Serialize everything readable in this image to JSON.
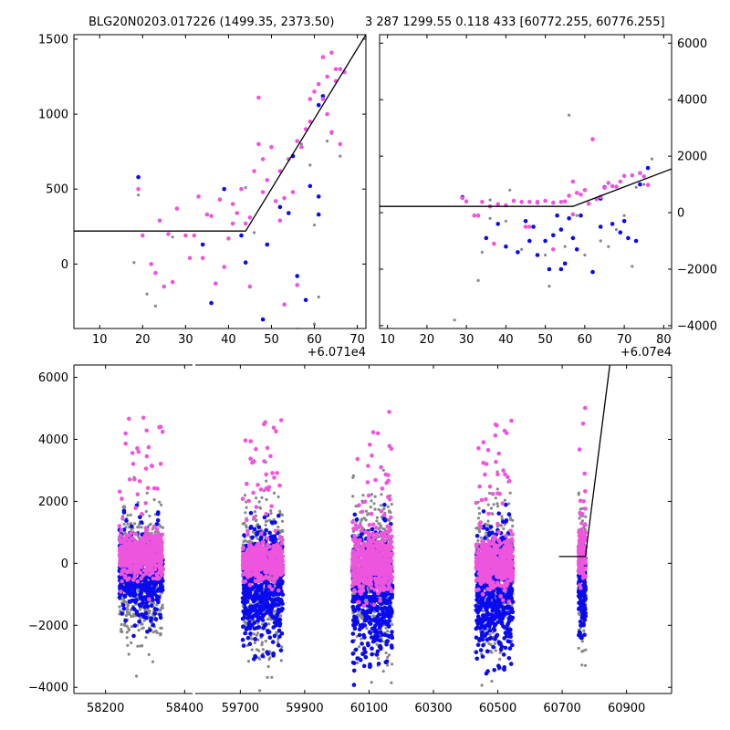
{
  "titles": {
    "left": "BLG20N0203.017226 (1499.35, 2373.50)",
    "right": "3 287 1299.55 0.118 433 [60772.255, 60776.255]"
  },
  "colors": {
    "pink": "#ee55dd",
    "blue": "#0a0aee",
    "gray": "#888888",
    "line": "#000000"
  },
  "chart_data": [
    {
      "type": "scatter",
      "id": "top-left",
      "xlim": [
        4,
        72
      ],
      "ylim": [
        -430,
        1530
      ],
      "xticks": [
        10,
        20,
        30,
        40,
        50,
        60,
        70
      ],
      "yticks": [
        0,
        500,
        1000,
        1500
      ],
      "offset_label": "+6.071e4",
      "model": {
        "x": [
          4,
          44,
          72
        ],
        "y": [
          220,
          220,
          1530
        ]
      },
      "points": {
        "pink": [
          [
            19,
            500
          ],
          [
            20,
            190
          ],
          [
            22,
            0
          ],
          [
            23,
            -60
          ],
          [
            24,
            290
          ],
          [
            25,
            -150
          ],
          [
            26,
            200
          ],
          [
            27,
            -120
          ],
          [
            28,
            370
          ],
          [
            30,
            190
          ],
          [
            31,
            40
          ],
          [
            32,
            190
          ],
          [
            33,
            450
          ],
          [
            34,
            40
          ],
          [
            35,
            330
          ],
          [
            36,
            320
          ],
          [
            37,
            -130
          ],
          [
            38,
            430
          ],
          [
            39,
            -20
          ],
          [
            40,
            170
          ],
          [
            41,
            400
          ],
          [
            42,
            340
          ],
          [
            43,
            500
          ],
          [
            44,
            270
          ],
          [
            45,
            310
          ],
          [
            46,
            620
          ],
          [
            47,
            1110
          ],
          [
            47,
            800
          ],
          [
            48,
            700
          ],
          [
            48,
            480
          ],
          [
            49,
            560
          ],
          [
            50,
            780
          ],
          [
            51,
            420
          ],
          [
            52,
            620
          ],
          [
            53,
            440
          ],
          [
            54,
            700
          ],
          [
            55,
            480
          ],
          [
            56,
            820
          ],
          [
            57,
            780
          ],
          [
            58,
            900
          ],
          [
            59,
            1100
          ],
          [
            59,
            950
          ],
          [
            60,
            1150
          ],
          [
            61,
            1200
          ],
          [
            62,
            1380
          ],
          [
            62,
            1100
          ],
          [
            63,
            1250
          ],
          [
            63,
            1000
          ],
          [
            64,
            1410
          ],
          [
            64,
            880
          ],
          [
            65,
            1300
          ],
          [
            65,
            1220
          ],
          [
            66,
            1300
          ],
          [
            66,
            800
          ],
          [
            67,
            1280
          ],
          [
            56,
            -140
          ],
          [
            45,
            -150
          ],
          [
            41,
            270
          ],
          [
            53,
            -270
          ],
          [
            52,
            290
          ]
        ],
        "blue": [
          [
            19,
            580
          ],
          [
            34,
            130
          ],
          [
            36,
            -260
          ],
          [
            39,
            500
          ],
          [
            43,
            190
          ],
          [
            44,
            10
          ],
          [
            48,
            -370
          ],
          [
            49,
            130
          ],
          [
            52,
            380
          ],
          [
            55,
            720
          ],
          [
            56,
            -80
          ],
          [
            58,
            -240
          ],
          [
            59,
            520
          ],
          [
            61,
            1060
          ],
          [
            61,
            450
          ],
          [
            61,
            330
          ],
          [
            62,
            1120
          ],
          [
            56,
            -440
          ],
          [
            54,
            340
          ]
        ],
        "gray": [
          [
            18,
            10
          ],
          [
            19,
            460
          ],
          [
            21,
            -200
          ],
          [
            23,
            -280
          ],
          [
            27,
            180
          ],
          [
            44,
            510
          ],
          [
            46,
            210
          ],
          [
            59,
            660
          ],
          [
            60,
            -400
          ],
          [
            60,
            260
          ],
          [
            61,
            -220
          ],
          [
            63,
            820
          ],
          [
            63,
            1000
          ],
          [
            64,
            870
          ],
          [
            66,
            720
          ],
          [
            57,
            800
          ],
          [
            52,
            620
          ]
        ]
      }
    },
    {
      "type": "scatter",
      "id": "top-right",
      "xlim": [
        8,
        82
      ],
      "ylim": [
        -4100,
        6300
      ],
      "xticks": [
        10,
        20,
        30,
        40,
        50,
        60,
        70,
        80
      ],
      "yticks": [
        -4000,
        -2000,
        0,
        2000,
        4000,
        6000
      ],
      "offset_label": "+6.07e4",
      "model": {
        "x": [
          8,
          57,
          82
        ],
        "y": [
          220,
          220,
          1550
        ]
      },
      "points": {
        "pink": [
          [
            29,
            520
          ],
          [
            30,
            400
          ],
          [
            32,
            -100
          ],
          [
            34,
            380
          ],
          [
            36,
            220
          ],
          [
            38,
            300
          ],
          [
            40,
            260
          ],
          [
            42,
            420
          ],
          [
            44,
            380
          ],
          [
            46,
            -500
          ],
          [
            46,
            380
          ],
          [
            48,
            350
          ],
          [
            50,
            420
          ],
          [
            52,
            350
          ],
          [
            54,
            380
          ],
          [
            56,
            600
          ],
          [
            57,
            1100
          ],
          [
            58,
            700
          ],
          [
            59,
            640
          ],
          [
            60,
            800
          ],
          [
            61,
            320
          ],
          [
            62,
            2600
          ],
          [
            63,
            480
          ],
          [
            64,
            560
          ],
          [
            65,
            880
          ],
          [
            66,
            1050
          ],
          [
            68,
            920
          ],
          [
            69,
            1100
          ],
          [
            70,
            1300
          ],
          [
            72,
            1320
          ],
          [
            74,
            1400
          ],
          [
            75,
            1280
          ],
          [
            76,
            980
          ],
          [
            37,
            -1100
          ],
          [
            33,
            -100
          ],
          [
            52,
            -1300
          ],
          [
            45,
            -500
          ],
          [
            57,
            -60
          ],
          [
            67,
            940
          ],
          [
            48,
            380
          ],
          [
            55,
            400
          ]
        ],
        "blue": [
          [
            29,
            550
          ],
          [
            35,
            -900
          ],
          [
            38,
            -400
          ],
          [
            40,
            -1200
          ],
          [
            43,
            -1400
          ],
          [
            45,
            -300
          ],
          [
            46,
            -1000
          ],
          [
            47,
            -500
          ],
          [
            48,
            -1500
          ],
          [
            50,
            -1000
          ],
          [
            51,
            -2000
          ],
          [
            52,
            -800
          ],
          [
            53,
            -100
          ],
          [
            54,
            -600
          ],
          [
            56,
            -200
          ],
          [
            57,
            -900
          ],
          [
            58,
            -1300
          ],
          [
            59,
            -100
          ],
          [
            62,
            -2100
          ],
          [
            64,
            -500
          ],
          [
            65,
            900
          ],
          [
            67,
            -400
          ],
          [
            69,
            -700
          ],
          [
            70,
            -300
          ],
          [
            71,
            -900
          ],
          [
            73,
            -1000
          ],
          [
            74,
            1000
          ],
          [
            76,
            1580
          ],
          [
            55,
            -1800
          ],
          [
            64,
            500
          ],
          [
            54,
            -2000
          ]
        ],
        "gray": [
          [
            27,
            -3800
          ],
          [
            33,
            -2400
          ],
          [
            34,
            -1400
          ],
          [
            36,
            -200
          ],
          [
            40,
            -300
          ],
          [
            44,
            -1300
          ],
          [
            50,
            -1500
          ],
          [
            51,
            -2600
          ],
          [
            55,
            -1200
          ],
          [
            56,
            3450
          ],
          [
            58,
            -100
          ],
          [
            60,
            -1500
          ],
          [
            64,
            -1000
          ],
          [
            66,
            -1200
          ],
          [
            68,
            -600
          ],
          [
            70,
            -100
          ],
          [
            72,
            -1900
          ],
          [
            73,
            900
          ],
          [
            75,
            1000
          ],
          [
            77,
            1900
          ],
          [
            36,
            450
          ],
          [
            41,
            800
          ]
        ]
      }
    },
    {
      "type": "scatter",
      "id": "bottom",
      "ylim": [
        -4200,
        6400
      ],
      "yticks": [
        -4000,
        -2000,
        0,
        2000,
        4000,
        6000
      ],
      "segments": [
        {
          "xlim": [
            58120,
            58420
          ],
          "xticks": [
            58200,
            58400
          ]
        },
        {
          "xlim": [
            59560,
            61040
          ],
          "xticks": [
            59700,
            59900,
            60100,
            60300,
            60500,
            60700,
            60900
          ]
        }
      ],
      "model": {
        "x": [
          60690,
          60772,
          60848
        ],
        "y": [
          220,
          220,
          6400
        ]
      },
      "clusters": [
        {
          "segment": 0,
          "center": 58290,
          "spread": 110,
          "n": 560,
          "pink_mean": 250,
          "pink_sd": 350,
          "blue_mean": -300,
          "blue_sd": 650,
          "gray_sd": 1000
        },
        {
          "segment": 1,
          "center": 59770,
          "spread": 125,
          "n": 520,
          "pink_mean": 50,
          "pink_sd": 300,
          "blue_mean": -700,
          "blue_sd": 900,
          "gray_sd": 1200
        },
        {
          "segment": 1,
          "center": 60110,
          "spread": 125,
          "n": 540,
          "pink_mean": 0,
          "pink_sd": 500,
          "blue_mean": -900,
          "blue_sd": 1000,
          "gray_sd": 1200
        },
        {
          "segment": 1,
          "center": 60490,
          "spread": 115,
          "n": 520,
          "pink_mean": 0,
          "pink_sd": 400,
          "blue_mean": -900,
          "blue_sd": 1000,
          "gray_sd": 1100
        },
        {
          "segment": 1,
          "center": 60762,
          "spread": 22,
          "n": 160,
          "pink_mean": 300,
          "pink_sd": 400,
          "blue_mean": -700,
          "blue_sd": 700,
          "gray_sd": 1000
        }
      ]
    }
  ]
}
